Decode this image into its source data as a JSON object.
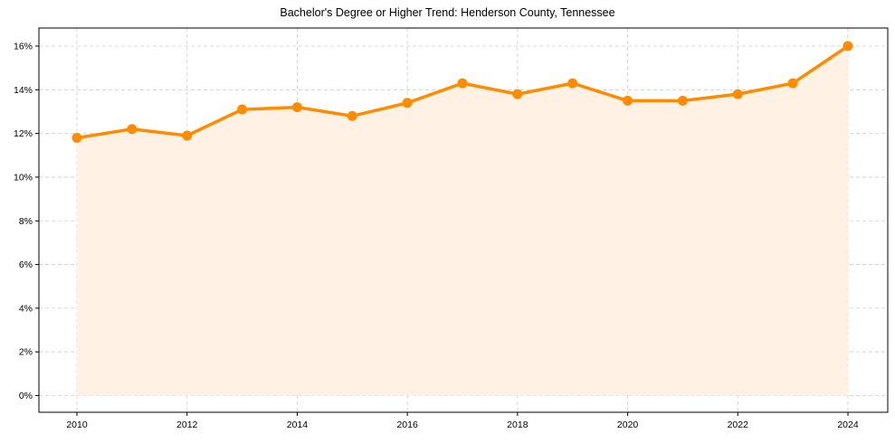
{
  "chart_data": {
    "type": "line",
    "title": "Bachelor's Degree or Higher Trend: Henderson County, Tennessee",
    "xlabel": "",
    "ylabel": "",
    "x": [
      2010,
      2011,
      2012,
      2013,
      2014,
      2015,
      2016,
      2017,
      2018,
      2019,
      2020,
      2021,
      2022,
      2023,
      2024
    ],
    "series": [
      {
        "name": "Bachelor's Degree or Higher",
        "values": [
          11.8,
          12.2,
          11.9,
          13.1,
          13.2,
          12.8,
          13.4,
          14.3,
          13.8,
          14.3,
          13.5,
          13.5,
          13.8,
          14.3,
          16.0
        ],
        "unit": "%",
        "color": "#FF8C00",
        "fill_color": "#FFF1E3",
        "marker": "circle",
        "area_fill": true
      }
    ],
    "xticks": [
      2010,
      2012,
      2014,
      2016,
      2018,
      2020,
      2022,
      2024
    ],
    "yticks": [
      0,
      2,
      4,
      6,
      8,
      10,
      12,
      14,
      16
    ],
    "ytick_labels": [
      "0%",
      "2%",
      "4%",
      "6%",
      "8%",
      "10%",
      "12%",
      "14%",
      "16%"
    ],
    "xlim": [
      2009.3,
      2024.7
    ],
    "ylim": [
      -0.8,
      16.8
    ],
    "grid": true,
    "grid_style": "dashed",
    "legend": null
  }
}
